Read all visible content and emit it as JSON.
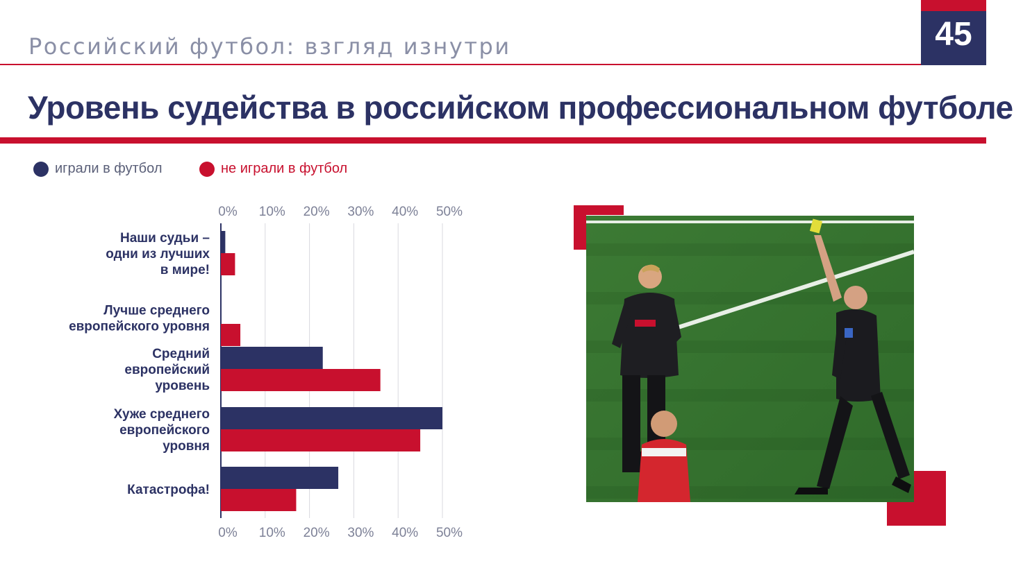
{
  "header": {
    "subtitle": "Российский футбол: взгляд изнутри",
    "page_number": "45",
    "title": "Уровень судейства в российском профессиональном футболе?"
  },
  "legend": [
    {
      "label": "играли в футбол",
      "color": "#2c3264"
    },
    {
      "label": "не играли в футбол",
      "color": "#c8102e"
    }
  ],
  "chart_data": {
    "type": "bar",
    "orientation": "horizontal",
    "categories": [
      [
        "Наши судьи –",
        "одни из лучших",
        "в мире!"
      ],
      [
        "Лучше среднего",
        "европейского уровня"
      ],
      [
        "Средний",
        "европейский",
        "уровень"
      ],
      [
        "Хуже среднего",
        "европейского",
        "уровня"
      ],
      [
        "Катастрофа!"
      ]
    ],
    "series": [
      {
        "name": "играли в футбол",
        "color": "#2c3264",
        "values": [
          1,
          0,
          23,
          50,
          26.5
        ]
      },
      {
        "name": "не играли в футбол",
        "color": "#c8102e",
        "values": [
          3.2,
          4.4,
          36,
          45,
          17
        ]
      }
    ],
    "x_ticks": [
      "0%",
      "10%",
      "20%",
      "30%",
      "40%",
      "50%"
    ],
    "xlim": [
      0,
      50
    ],
    "grid": true,
    "legend_position": "top-left"
  },
  "photo": {
    "description_icon": "referee-yellow-card-photo"
  }
}
